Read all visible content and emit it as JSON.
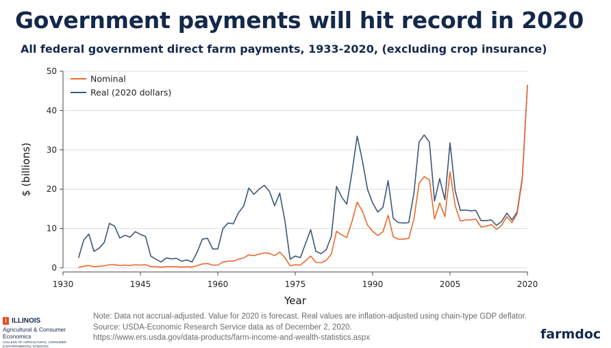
{
  "header": {
    "title": "Government payments will hit record in 2020",
    "subtitle": "All federal government direct farm payments, 1933-2020, (excluding crop insurance)"
  },
  "notes": {
    "line1": "Note: Data not accrual-adjusted. Value for 2020 is forecast. Real values are inflation-adjusted using chain-type GDP deflator.",
    "line2": "Source: USDA-Economic Research Service data as of December 2, 2020.",
    "line3": "https://www.ers.usda.gov/data-products/farm-income-and-wealth-statistics.aspx"
  },
  "branding": {
    "illinois_mark": "I",
    "illinois_name": "ILLINOIS",
    "illinois_dept": "Agricultural & Consumer Economics",
    "illinois_college_1": "COLLEGE OF AGRICULTURAL, CONSUMER",
    "illinois_college_2": "& ENVIRONMENTAL SCIENCES",
    "farmdoc": "farmdoc"
  },
  "colors": {
    "nominal": "#e8692a",
    "real": "#3b5675",
    "axis": "#444444",
    "grid": "#dddddd"
  },
  "chart_data": {
    "type": "line",
    "title": "All federal government direct farm payments, 1933-2020, (excluding crop insurance)",
    "xlabel": "Year",
    "ylabel": "$ (billions)",
    "xlim": [
      1930,
      2020
    ],
    "ylim": [
      0,
      50
    ],
    "xticks": [
      1930,
      1945,
      1960,
      1975,
      1990,
      2005,
      2020
    ],
    "yticks": [
      0,
      10,
      20,
      30,
      40,
      50
    ],
    "grid": "horizontal",
    "legend": "top-left",
    "x": [
      1933,
      1934,
      1935,
      1936,
      1937,
      1938,
      1939,
      1940,
      1941,
      1942,
      1943,
      1944,
      1945,
      1946,
      1947,
      1948,
      1949,
      1950,
      1951,
      1952,
      1953,
      1954,
      1955,
      1956,
      1957,
      1958,
      1959,
      1960,
      1961,
      1962,
      1963,
      1964,
      1965,
      1966,
      1967,
      1968,
      1969,
      1970,
      1971,
      1972,
      1973,
      1974,
      1975,
      1976,
      1977,
      1978,
      1979,
      1980,
      1981,
      1982,
      1983,
      1984,
      1985,
      1986,
      1987,
      1988,
      1989,
      1990,
      1991,
      1992,
      1993,
      1994,
      1995,
      1996,
      1997,
      1998,
      1999,
      2000,
      2001,
      2002,
      2003,
      2004,
      2005,
      2006,
      2007,
      2008,
      2009,
      2010,
      2011,
      2012,
      2013,
      2014,
      2015,
      2016,
      2017,
      2018,
      2019,
      2020
    ],
    "series": [
      {
        "name": "Nominal",
        "values": [
          0.1,
          0.4,
          0.6,
          0.3,
          0.4,
          0.5,
          0.8,
          0.8,
          0.6,
          0.7,
          0.6,
          0.8,
          0.7,
          0.8,
          0.3,
          0.3,
          0.2,
          0.3,
          0.3,
          0.3,
          0.2,
          0.3,
          0.2,
          0.6,
          1.0,
          1.1,
          0.7,
          0.7,
          1.5,
          1.7,
          1.7,
          2.2,
          2.5,
          3.3,
          3.1,
          3.5,
          3.8,
          3.7,
          3.1,
          4.0,
          2.6,
          0.5,
          0.8,
          0.7,
          1.8,
          3.0,
          1.4,
          1.3,
          1.9,
          3.5,
          9.3,
          8.4,
          7.7,
          11.8,
          16.7,
          14.5,
          10.9,
          9.3,
          8.2,
          9.2,
          13.4,
          7.9,
          7.3,
          7.3,
          7.5,
          12.4,
          21.5,
          23.2,
          22.4,
          12.4,
          16.5,
          13.0,
          24.4,
          15.8,
          11.9,
          12.2,
          12.2,
          12.4,
          10.4,
          10.6,
          11.0,
          9.8,
          10.8,
          13.0,
          11.5,
          13.7,
          22.4,
          46.5
        ]
      },
      {
        "name": "Real (2020 dollars)",
        "values": [
          2.5,
          7.0,
          8.6,
          4.2,
          5.0,
          6.5,
          11.3,
          10.6,
          7.6,
          8.3,
          7.8,
          9.2,
          8.5,
          8.0,
          3.0,
          2.2,
          1.5,
          2.5,
          2.3,
          2.4,
          1.7,
          2.0,
          1.5,
          4.0,
          7.3,
          7.5,
          4.8,
          4.8,
          10.0,
          11.4,
          11.2,
          14.0,
          15.7,
          20.3,
          18.7,
          20.0,
          21.0,
          19.5,
          15.8,
          19.0,
          12.0,
          2.2,
          3.0,
          2.6,
          6.2,
          9.7,
          4.2,
          3.6,
          4.6,
          8.0,
          20.7,
          18.0,
          16.2,
          24.3,
          33.5,
          27.4,
          20.0,
          16.5,
          14.2,
          15.4,
          22.2,
          12.6,
          11.5,
          11.4,
          11.5,
          19.0,
          32.0,
          33.8,
          32.0,
          17.0,
          22.7,
          17.3,
          31.8,
          19.6,
          14.6,
          14.7,
          14.5,
          14.6,
          12.0,
          12.0,
          12.2,
          10.8,
          11.8,
          13.9,
          12.2,
          14.2,
          22.9,
          46.5
        ]
      }
    ]
  }
}
